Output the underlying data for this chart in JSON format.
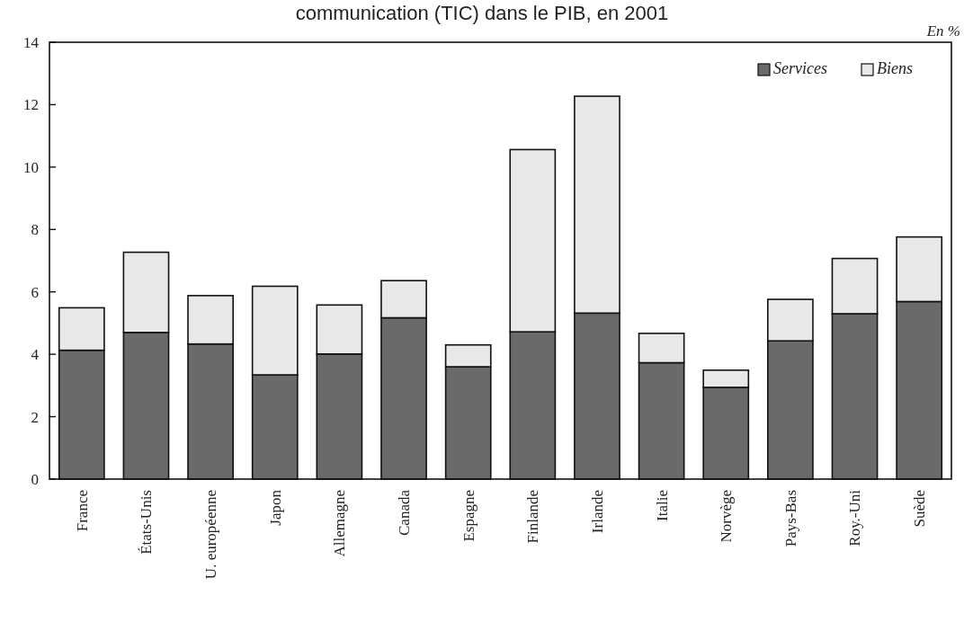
{
  "chart_data": {
    "type": "bar",
    "title": "communication (TIC) dans le PIB, en 2001",
    "annotations": [
      "En %"
    ],
    "categories": [
      "France",
      "États-Unis",
      "U. européenne",
      "Japon",
      "Allemagne",
      "Canada",
      "Espagne",
      "Finlande",
      "Irlande",
      "Italie",
      "Norvège",
      "Pays-Bas",
      "Roy.-Uni",
      "Suède"
    ],
    "stacked": true,
    "series": [
      {
        "name": "Services",
        "color": "#6a6a6a",
        "values": [
          4.13,
          4.7,
          4.33,
          3.34,
          4.01,
          5.17,
          3.6,
          4.72,
          5.32,
          3.73,
          2.94,
          4.43,
          5.3,
          5.69
        ]
      },
      {
        "name": "Biens",
        "color": "#e8e8e8",
        "values": [
          1.36,
          2.57,
          1.55,
          2.84,
          1.57,
          1.19,
          0.7,
          5.84,
          6.95,
          0.94,
          0.55,
          1.33,
          1.77,
          2.07
        ]
      }
    ],
    "ylim": [
      0,
      14
    ],
    "yticks": [
      0,
      2,
      4,
      6,
      8,
      10,
      12,
      14
    ],
    "grid": false,
    "legend": "top right"
  }
}
